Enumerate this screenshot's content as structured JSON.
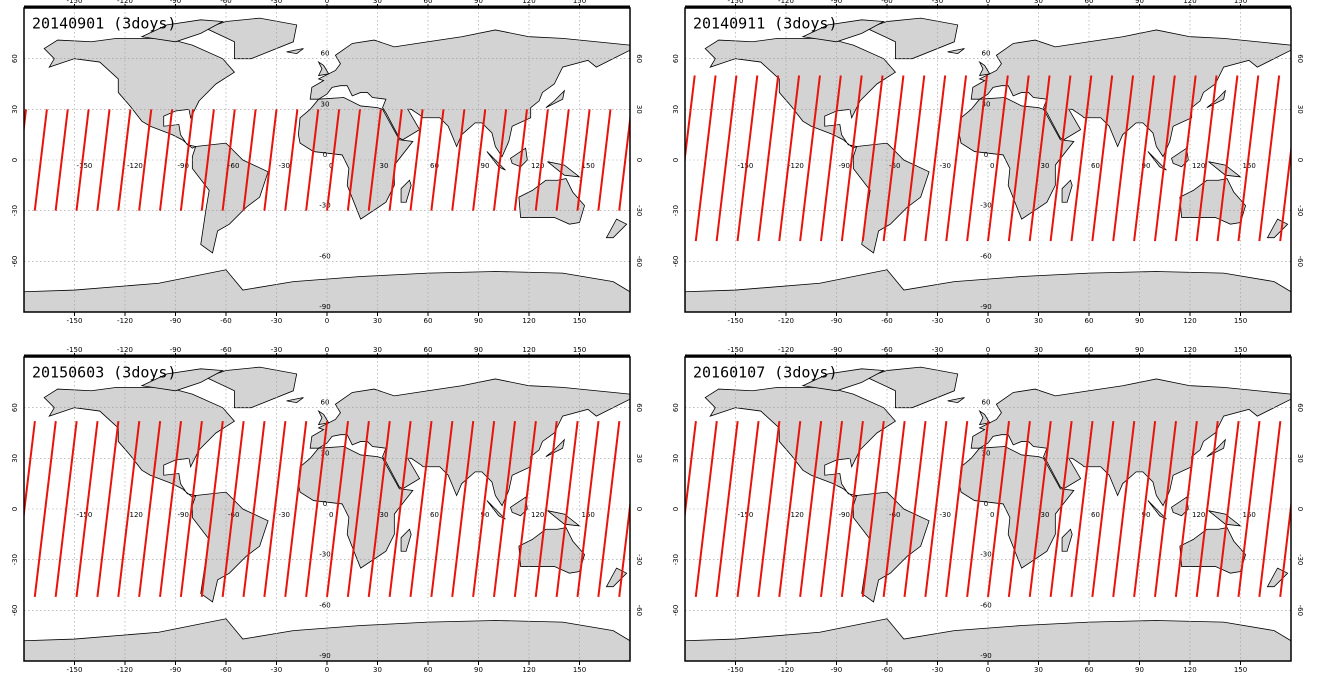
{
  "panels": [
    {
      "title": "20140901 (3doys)",
      "swath_lat": [
        -30,
        30
      ]
    },
    {
      "title": "20140911 (3doys)",
      "swath_lat": [
        -48,
        50
      ]
    },
    {
      "title": "20150603 (3doys)",
      "swath_lat": [
        -52,
        52
      ]
    },
    {
      "title": "20160107 (3doys)",
      "swath_lat": [
        -52,
        52
      ]
    }
  ],
  "lon_ticks": [
    -150,
    -120,
    -90,
    -60,
    -30,
    0,
    30,
    60,
    90,
    120,
    150
  ],
  "lat_ticks": [
    60,
    30,
    0,
    -30,
    -60,
    -90
  ]
}
